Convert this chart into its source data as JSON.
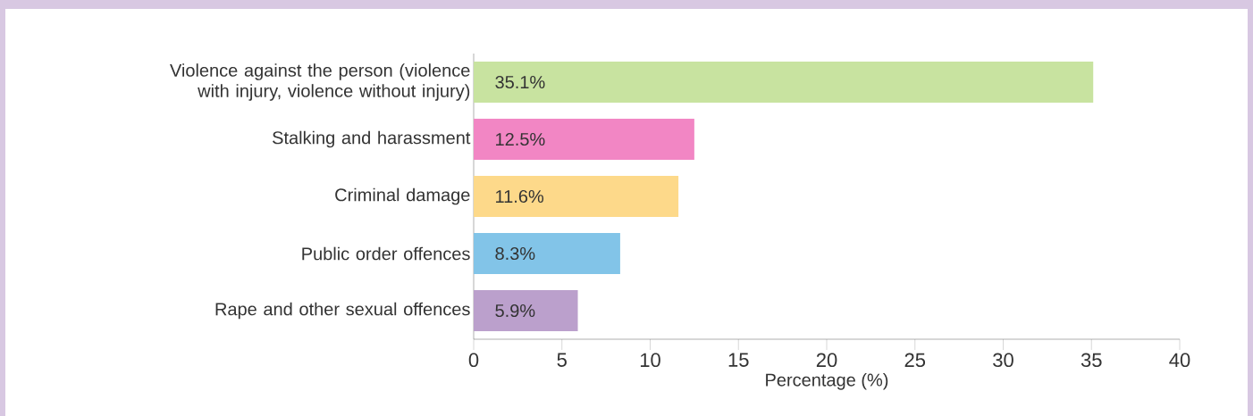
{
  "chart_data": {
    "type": "bar",
    "orientation": "horizontal",
    "xlabel": "Percentage (%)",
    "categories": [
      "Violence against the person (violence with injury, violence without injury)",
      "Stalking and harassment",
      "Criminal damage",
      "Public order offences",
      "Rape and other sexual offences"
    ],
    "values": [
      35.1,
      12.5,
      11.6,
      8.3,
      5.9
    ],
    "colors": [
      "#c8e3a0",
      "#f286c4",
      "#fdd98a",
      "#82c4e8",
      "#bba0cc"
    ],
    "value_labels": [
      "35.1%",
      "12.5%",
      "11.6%",
      "8.3%",
      "5.9%"
    ],
    "xlim": [
      0,
      40
    ],
    "xticks": [
      0,
      5,
      10,
      15,
      20,
      25,
      30,
      35,
      40
    ],
    "grid": false
  }
}
